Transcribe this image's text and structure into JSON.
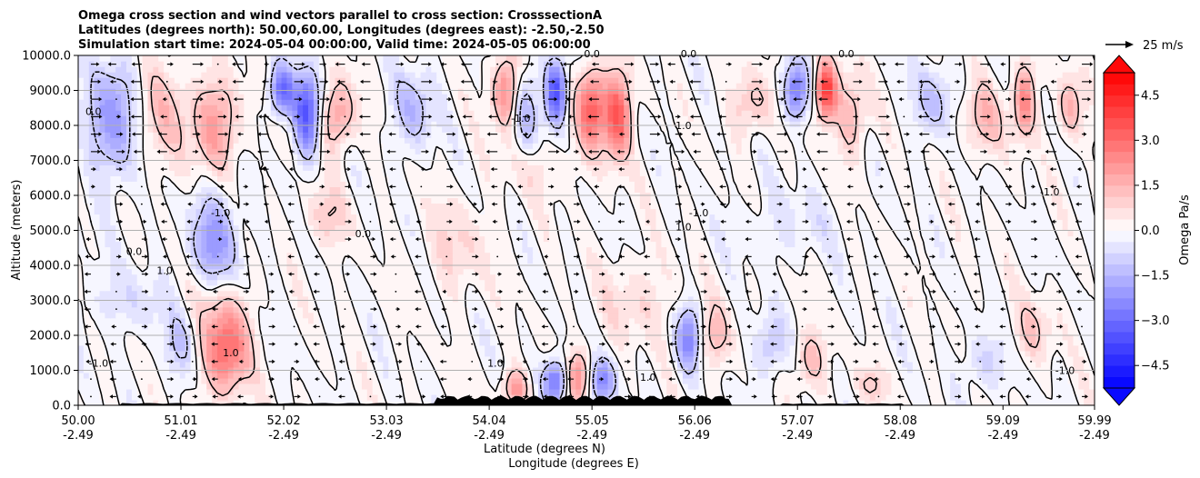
{
  "chart_data": {
    "type": "heatmap",
    "title_lines": [
      "Omega cross section and wind vectors parallel to cross section: CrosssectionA",
      "Latitudes (degrees north): 50.00,60.00, Longitudes (degrees east): -2.50,-2.50",
      "Simulation start time: 2024-05-04 00:00:00, Valid time: 2024-05-05 06:00:00"
    ],
    "ylabel": "Altitude (meters)",
    "xlabel_line1": "Latitude (degrees N)",
    "xlabel_line2": "Longitude (degrees E)",
    "xlim": [
      50.0,
      59.99
    ],
    "ylim": [
      0,
      10000
    ],
    "x_ticks": [
      {
        "lat": "50.00",
        "lon": "-2.49",
        "value": 50.0
      },
      {
        "lat": "51.01",
        "lon": "-2.49",
        "value": 51.01
      },
      {
        "lat": "52.02",
        "lon": "-2.49",
        "value": 52.02
      },
      {
        "lat": "53.03",
        "lon": "-2.49",
        "value": 53.03
      },
      {
        "lat": "54.04",
        "lon": "-2.49",
        "value": 54.04
      },
      {
        "lat": "55.05",
        "lon": "-2.49",
        "value": 55.05
      },
      {
        "lat": "56.06",
        "lon": "-2.49",
        "value": 56.06
      },
      {
        "lat": "57.07",
        "lon": "-2.49",
        "value": 57.07
      },
      {
        "lat": "58.08",
        "lon": "-2.49",
        "value": 58.08
      },
      {
        "lat": "59.09",
        "lon": "-2.49",
        "value": 59.09
      },
      {
        "lat": "59.99",
        "lon": "-2.49",
        "value": 59.99
      }
    ],
    "y_ticks": [
      {
        "label": "0.0",
        "value": 0
      },
      {
        "label": "1000.0",
        "value": 1000
      },
      {
        "label": "2000.0",
        "value": 2000
      },
      {
        "label": "3000.0",
        "value": 3000
      },
      {
        "label": "4000.0",
        "value": 4000
      },
      {
        "label": "5000.0",
        "value": 5000
      },
      {
        "label": "6000.0",
        "value": 6000
      },
      {
        "label": "7000.0",
        "value": 7000
      },
      {
        "label": "8000.0",
        "value": 8000
      },
      {
        "label": "9000.0",
        "value": 9000
      },
      {
        "label": "10000.0",
        "value": 10000
      }
    ],
    "grid": "horizontal",
    "colorbar": {
      "label": "Omega Pa/s",
      "range": [
        -5.25,
        5.25
      ],
      "step": 0.375,
      "ticks": [
        {
          "label": "4.5",
          "value": 4.5
        },
        {
          "label": "3.0",
          "value": 3.0
        },
        {
          "label": "1.5",
          "value": 1.5
        },
        {
          "label": "0.0",
          "value": 0.0
        },
        {
          "label": "−1.5",
          "value": -1.5
        },
        {
          "label": "−3.0",
          "value": -3.0
        },
        {
          "label": "−4.5",
          "value": -4.5
        }
      ],
      "extend": "both",
      "colormap": "bwr"
    },
    "quiver_key": {
      "label": "25 m/s",
      "speed": 25
    },
    "contour_levels": [
      -1.0,
      0.0,
      1.0
    ],
    "contour_labels": [
      {
        "text": "0.0",
        "x": 50.15,
        "y": 8300
      },
      {
        "text": "-1.0",
        "x": 50.2,
        "y": 1100
      },
      {
        "text": "0.0",
        "x": 50.55,
        "y": 4300
      },
      {
        "text": "1.0",
        "x": 50.85,
        "y": 3750
      },
      {
        "text": "-1.0",
        "x": 51.4,
        "y": 5400
      },
      {
        "text": "1.0",
        "x": 51.5,
        "y": 1400
      },
      {
        "text": "0.0",
        "x": 52.8,
        "y": 4800
      },
      {
        "text": "1.0",
        "x": 54.1,
        "y": 1100
      },
      {
        "text": "-1.0",
        "x": 54.35,
        "y": 8100
      },
      {
        "text": "0.0",
        "x": 55.05,
        "y": 9950
      },
      {
        "text": "1.0",
        "x": 55.6,
        "y": 700
      },
      {
        "text": "1.0",
        "x": 55.95,
        "y": 7900
      },
      {
        "text": "1.0",
        "x": 55.95,
        "y": 5000
      },
      {
        "text": "-1.0",
        "x": 56.1,
        "y": 5400
      },
      {
        "text": "0.0",
        "x": 56.0,
        "y": 9950
      },
      {
        "text": "0.0",
        "x": 57.55,
        "y": 9950
      },
      {
        "text": "-1.0",
        "x": 59.55,
        "y": 6000
      },
      {
        "text": "-1.0",
        "x": 59.7,
        "y": 900
      }
    ],
    "fields": [
      {
        "x": 50.35,
        "y": 8200,
        "rx": 0.25,
        "ry": 1700,
        "value": -2.2
      },
      {
        "x": 50.8,
        "y": 8300,
        "rx": 0.3,
        "ry": 1500,
        "value": 1.2
      },
      {
        "x": 51.35,
        "y": 8000,
        "rx": 0.22,
        "ry": 1300,
        "value": 2.0
      },
      {
        "x": 51.35,
        "y": 4700,
        "rx": 0.22,
        "ry": 1400,
        "value": -2.1
      },
      {
        "x": 51.45,
        "y": 1700,
        "rx": 0.22,
        "ry": 1300,
        "value": 3.2
      },
      {
        "x": 51.0,
        "y": 1700,
        "rx": 0.15,
        "ry": 900,
        "value": -1.0
      },
      {
        "x": 51.25,
        "y": 3200,
        "rx": 0.25,
        "ry": 800,
        "value": 0.6
      },
      {
        "x": 52.0,
        "y": 9000,
        "rx": 0.12,
        "ry": 700,
        "value": -3.0
      },
      {
        "x": 52.25,
        "y": 8400,
        "rx": 0.12,
        "ry": 1200,
        "value": -3.6
      },
      {
        "x": 52.55,
        "y": 8300,
        "rx": 0.15,
        "ry": 1000,
        "value": 2.0
      },
      {
        "x": 52.45,
        "y": 5400,
        "rx": 0.2,
        "ry": 900,
        "value": 1.0
      },
      {
        "x": 53.3,
        "y": 8500,
        "rx": 0.2,
        "ry": 1100,
        "value": -1.4
      },
      {
        "x": 53.7,
        "y": 4500,
        "rx": 0.3,
        "ry": 1300,
        "value": 0.8
      },
      {
        "x": 54.2,
        "y": 9000,
        "rx": 0.12,
        "ry": 1000,
        "value": 2.6
      },
      {
        "x": 54.4,
        "y": 8300,
        "rx": 0.12,
        "ry": 1200,
        "value": -1.6
      },
      {
        "x": 54.7,
        "y": 9000,
        "rx": 0.1,
        "ry": 900,
        "value": -3.8
      },
      {
        "x": 55.05,
        "y": 8500,
        "rx": 0.14,
        "ry": 1100,
        "value": 3.4
      },
      {
        "x": 55.3,
        "y": 8300,
        "rx": 0.12,
        "ry": 1200,
        "value": 3.6
      },
      {
        "x": 54.7,
        "y": 700,
        "rx": 0.12,
        "ry": 600,
        "value": -3.4
      },
      {
        "x": 54.9,
        "y": 800,
        "rx": 0.12,
        "ry": 700,
        "value": 2.6
      },
      {
        "x": 55.15,
        "y": 700,
        "rx": 0.12,
        "ry": 600,
        "value": -2.6
      },
      {
        "x": 54.3,
        "y": 500,
        "rx": 0.12,
        "ry": 500,
        "value": 2.2
      },
      {
        "x": 56.0,
        "y": 1900,
        "rx": 0.12,
        "ry": 900,
        "value": -2.6
      },
      {
        "x": 56.25,
        "y": 2000,
        "rx": 0.14,
        "ry": 900,
        "value": 1.4
      },
      {
        "x": 56.6,
        "y": 8600,
        "rx": 0.2,
        "ry": 900,
        "value": 1.2
      },
      {
        "x": 57.05,
        "y": 9000,
        "rx": 0.12,
        "ry": 800,
        "value": -2.8
      },
      {
        "x": 57.35,
        "y": 9000,
        "rx": 0.1,
        "ry": 800,
        "value": 4.3
      },
      {
        "x": 57.6,
        "y": 8300,
        "rx": 0.15,
        "ry": 1200,
        "value": 1.5
      },
      {
        "x": 56.8,
        "y": 1700,
        "rx": 0.15,
        "ry": 900,
        "value": -1.3
      },
      {
        "x": 57.2,
        "y": 1300,
        "rx": 0.15,
        "ry": 800,
        "value": 1.4
      },
      {
        "x": 57.8,
        "y": 600,
        "rx": 0.15,
        "ry": 500,
        "value": 1.0
      },
      {
        "x": 58.4,
        "y": 8700,
        "rx": 0.2,
        "ry": 1000,
        "value": -1.2
      },
      {
        "x": 58.9,
        "y": 8200,
        "rx": 0.2,
        "ry": 1000,
        "value": 1.4
      },
      {
        "x": 59.3,
        "y": 8700,
        "rx": 0.1,
        "ry": 1000,
        "value": 2.8
      },
      {
        "x": 59.75,
        "y": 8500,
        "rx": 0.12,
        "ry": 900,
        "value": 1.6
      },
      {
        "x": 59.4,
        "y": 2200,
        "rx": 0.2,
        "ry": 900,
        "value": 1.0
      },
      {
        "x": 58.9,
        "y": 1200,
        "rx": 0.2,
        "ry": 800,
        "value": -0.9
      },
      {
        "x": 50.5,
        "y": 3000,
        "rx": 0.6,
        "ry": 900,
        "value": -0.6
      },
      {
        "x": 55.5,
        "y": 3000,
        "rx": 0.4,
        "ry": 1200,
        "value": 0.7
      },
      {
        "x": 57.0,
        "y": 5200,
        "rx": 0.5,
        "ry": 1000,
        "value": -0.5
      },
      {
        "x": 54.5,
        "y": 6800,
        "rx": 0.4,
        "ry": 900,
        "value": 0.6
      }
    ]
  }
}
